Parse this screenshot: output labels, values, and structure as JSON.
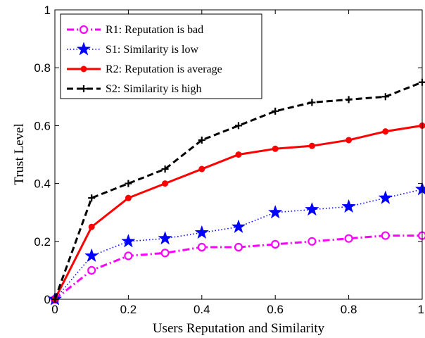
{
  "chart_data": {
    "type": "line",
    "xlabel": "Users Reputation and Similarity",
    "ylabel": "Trust Level",
    "xlim": [
      0,
      1
    ],
    "ylim": [
      0,
      1
    ],
    "xticks": [
      0,
      0.2,
      0.4,
      0.6,
      0.8,
      1
    ],
    "yticks": [
      0,
      0.2,
      0.4,
      0.6,
      0.8,
      1
    ],
    "xtick_labels": [
      "0",
      "0.2",
      "0.4",
      "0.6",
      "0.8",
      "1"
    ],
    "ytick_labels": [
      "0",
      "0.2",
      "0.4",
      "0.6",
      "0.8",
      "1"
    ],
    "grid": false,
    "legend_position": "top-left",
    "x": [
      0,
      0.1,
      0.2,
      0.3,
      0.4,
      0.5,
      0.6,
      0.7,
      0.8,
      0.9,
      1.0
    ],
    "series": [
      {
        "name": "R1: Reputation is bad",
        "values": [
          0,
          0.1,
          0.15,
          0.16,
          0.18,
          0.18,
          0.19,
          0.2,
          0.21,
          0.22,
          0.22
        ],
        "color": "#ff00ff",
        "line_style": "dash-dot",
        "marker": "circle"
      },
      {
        "name": "S1: Similarity is low",
        "values": [
          0,
          0.15,
          0.2,
          0.21,
          0.23,
          0.25,
          0.3,
          0.31,
          0.32,
          0.35,
          0.38
        ],
        "color": "#0000ff",
        "line_style": "dotted",
        "marker": "star"
      },
      {
        "name": "R2: Reputation is average",
        "values": [
          0,
          0.25,
          0.35,
          0.4,
          0.45,
          0.5,
          0.52,
          0.53,
          0.55,
          0.58,
          0.6
        ],
        "color": "#ff0000",
        "line_style": "solid",
        "marker": "dot"
      },
      {
        "name": "S2: Similarity is high",
        "values": [
          0,
          0.35,
          0.4,
          0.45,
          0.55,
          0.6,
          0.65,
          0.68,
          0.69,
          0.7,
          0.75
        ],
        "color": "#000000",
        "line_style": "dashed",
        "marker": "plus"
      }
    ]
  }
}
